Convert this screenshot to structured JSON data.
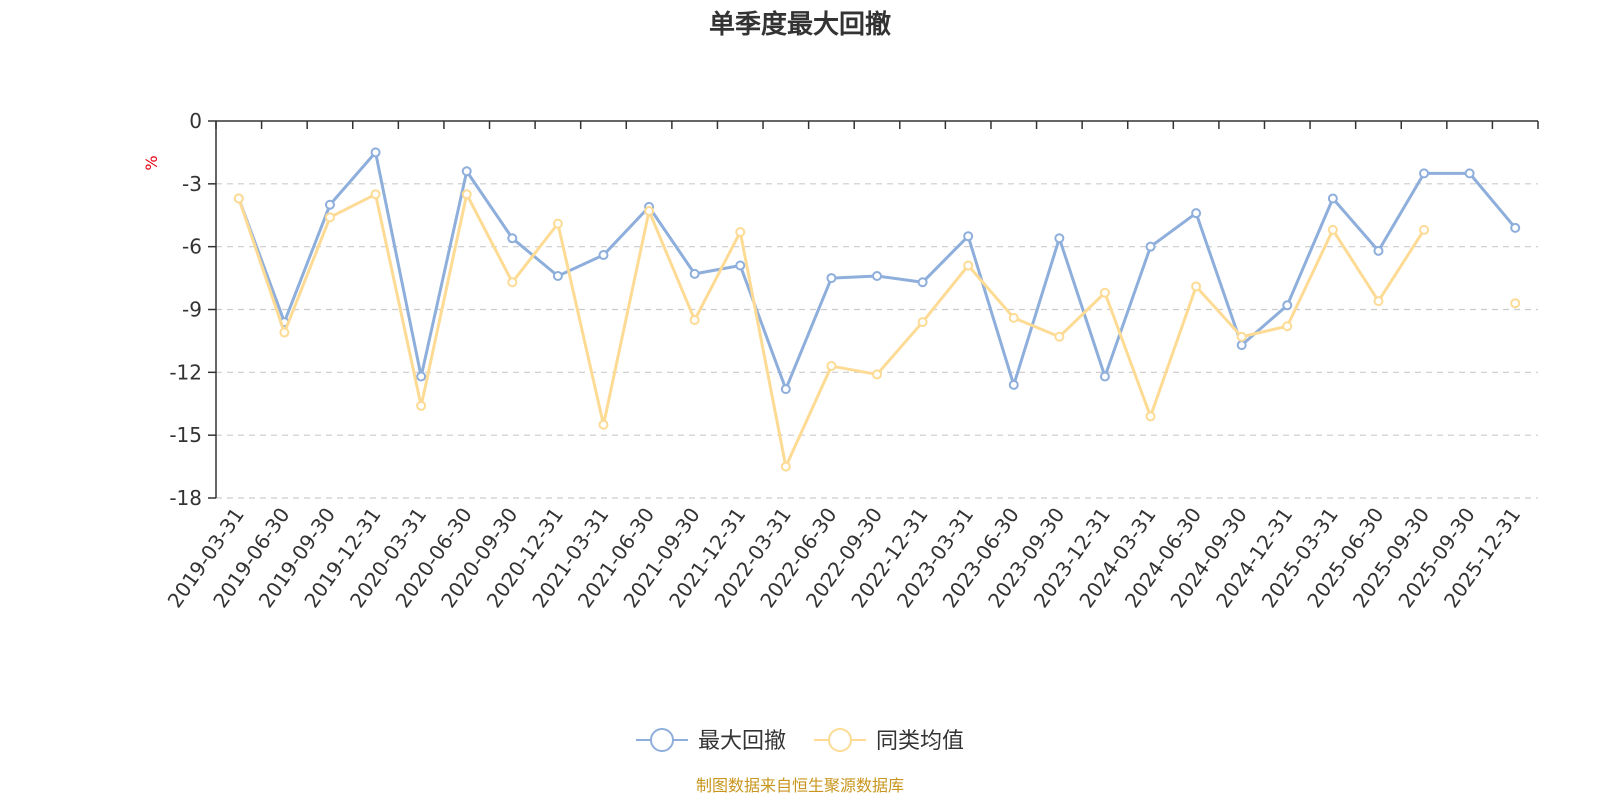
{
  "chart_data": {
    "type": "line",
    "title": "单季度最大回撤",
    "ylabel": "%",
    "ylim": [
      -18,
      0
    ],
    "yticks": [
      0,
      -3,
      -6,
      -9,
      -12,
      -15,
      -18
    ],
    "grid": true,
    "legend_position": "bottom",
    "categories": [
      "2019-03-31",
      "2019-06-30",
      "2019-09-30",
      "2019-12-31",
      "2020-03-31",
      "2020-06-30",
      "2020-09-30",
      "2020-12-31",
      "2021-03-31",
      "2021-06-30",
      "2021-09-30",
      "2021-12-31",
      "2022-03-31",
      "2022-06-30",
      "2022-09-30",
      "2022-12-31",
      "2023-03-31",
      "2023-06-30",
      "2023-09-30",
      "2023-12-31",
      "2024-03-31",
      "2024-06-30",
      "2024-09-30",
      "2024-12-31",
      "2025-03-31",
      "2025-06-30",
      "2025-09-30",
      "2025-09-30",
      "2025-12-31"
    ],
    "series": [
      {
        "name": "最大回撤",
        "color": "#8eaedb",
        "values": [
          -3.7,
          -9.6,
          -4.0,
          -1.5,
          -12.2,
          -2.4,
          -5.6,
          -7.4,
          -6.4,
          -4.1,
          -7.3,
          -6.9,
          -12.8,
          -7.5,
          -7.4,
          -7.7,
          -5.5,
          -12.6,
          -5.6,
          -12.2,
          -6.0,
          -4.4,
          -10.7,
          -8.8,
          -3.7,
          -6.2,
          -2.5,
          -2.5,
          -5.1
        ]
      },
      {
        "name": "同类均值",
        "color": "#fddb95",
        "values": [
          -3.7,
          -10.1,
          -4.6,
          -3.5,
          -13.6,
          -3.5,
          -7.7,
          -4.9,
          -14.5,
          -4.3,
          -9.5,
          -5.3,
          -16.5,
          -11.7,
          -12.1,
          -9.6,
          -6.9,
          -9.4,
          -10.3,
          -8.2,
          -14.1,
          -7.9,
          -10.3,
          -9.8,
          -5.2,
          -8.6,
          -5.2,
          null,
          -8.7
        ]
      }
    ]
  },
  "source_note": "制图数据来自恒生聚源数据库"
}
